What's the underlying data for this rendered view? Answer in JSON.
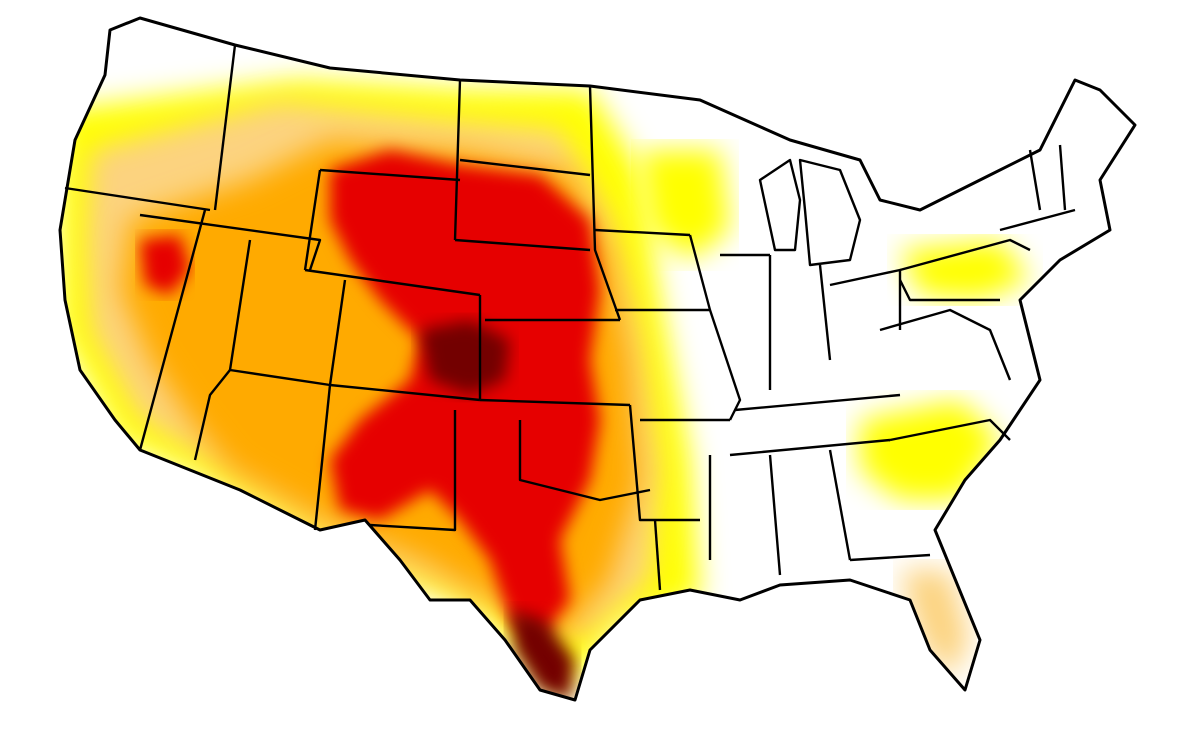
{
  "map": {
    "subject": "",
    "colors": {
      "background": "#ffffff",
      "none": "#ffffff",
      "abnormally_dry": "#ffff00",
      "moderate": "#fcd37f",
      "severe": "#ffaa00",
      "extreme": "#e60000",
      "exceptional": "#730000",
      "border": "#000000"
    },
    "zone_levels": [
      {
        "id": "west-yellow",
        "level": "abnormally_dry"
      },
      {
        "id": "west-moderate",
        "level": "moderate"
      },
      {
        "id": "west-severe",
        "level": "severe"
      },
      {
        "id": "central-extreme",
        "level": "extreme"
      },
      {
        "id": "core-exceptional",
        "level": "exceptional"
      },
      {
        "id": "south-texas-exceptional",
        "level": "exceptional"
      },
      {
        "id": "upper-midwest-yellow",
        "level": "abnormally_dry"
      },
      {
        "id": "southeast-yellow",
        "level": "abnormally_dry"
      },
      {
        "id": "northeast-yellow",
        "level": "abnormally_dry"
      },
      {
        "id": "florida-moderate",
        "level": "moderate"
      }
    ]
  }
}
